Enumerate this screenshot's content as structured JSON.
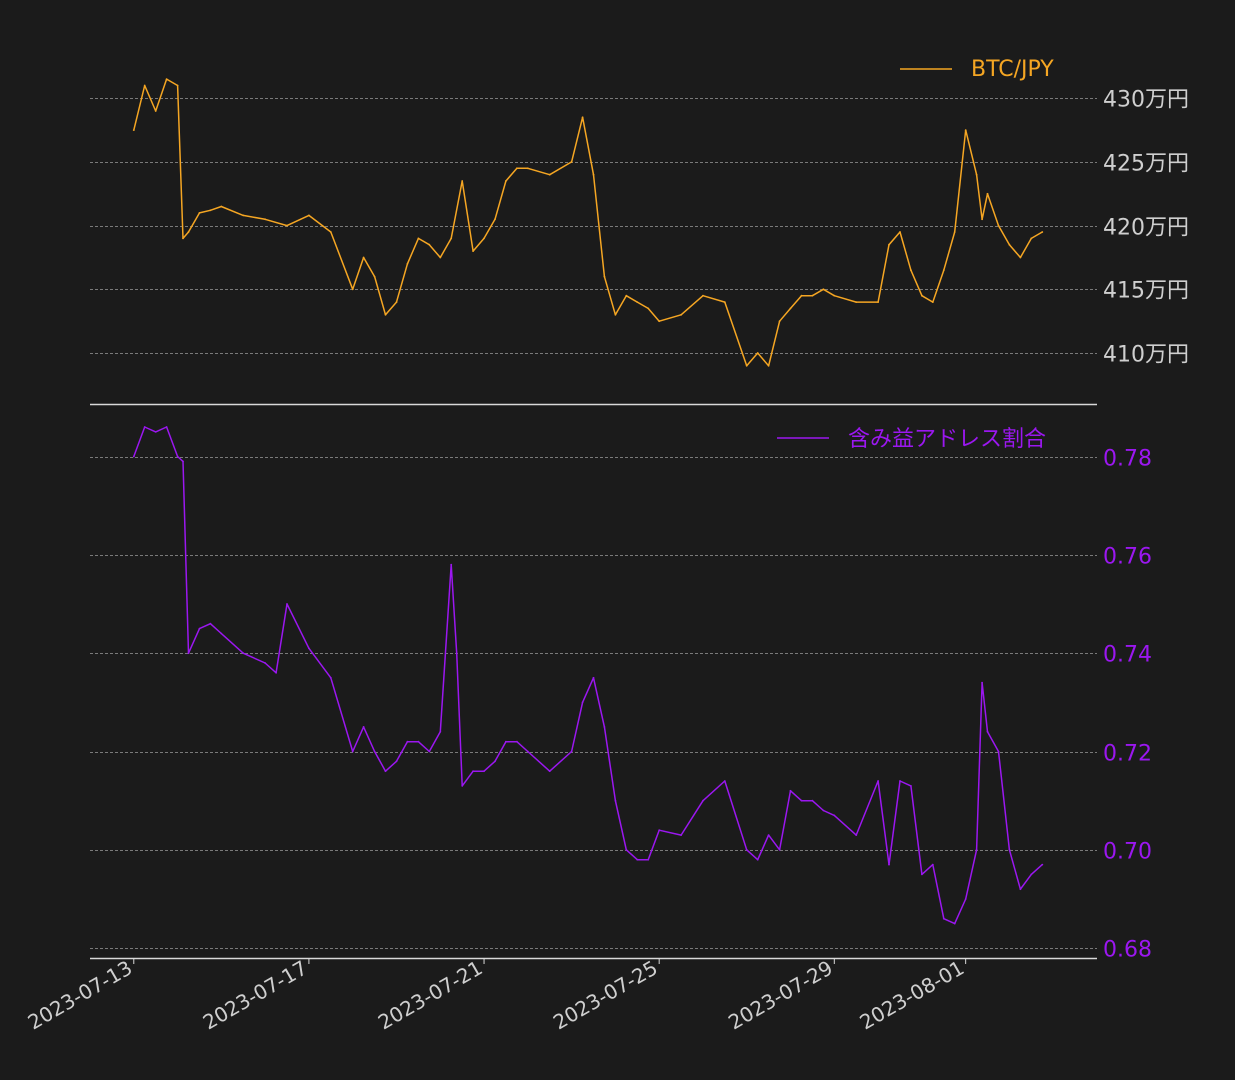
{
  "colors": {
    "background": "#1b1b1b",
    "btc": "#f5a623",
    "ratio": "#9b17f0",
    "grid": "#9a9a9a",
    "axis_text": "#cfcfcf"
  },
  "chart_data": [
    {
      "type": "line",
      "title": "",
      "legend": {
        "label": "BTC/JPY",
        "position": "top-right"
      },
      "y_axis": {
        "side": "right",
        "ticks": [
          4100000,
          4150000,
          4200000,
          4250000,
          4300000
        ],
        "tick_labels": [
          "410万円",
          "415万円",
          "420万円",
          "425万円",
          "430万円"
        ],
        "ylim": [
          4060000,
          4330000
        ]
      },
      "grid": true,
      "series": [
        {
          "name": "BTC/JPY",
          "x": [
            "2023-07-13 00:00",
            "2023-07-13 06:00",
            "2023-07-13 12:00",
            "2023-07-13 18:00",
            "2023-07-14 00:00",
            "2023-07-14 03:00",
            "2023-07-14 06:00",
            "2023-07-14 12:00",
            "2023-07-14 18:00",
            "2023-07-15 00:00",
            "2023-07-15 12:00",
            "2023-07-16 00:00",
            "2023-07-16 12:00",
            "2023-07-17 00:00",
            "2023-07-17 12:00",
            "2023-07-18 00:00",
            "2023-07-18 06:00",
            "2023-07-18 12:00",
            "2023-07-18 18:00",
            "2023-07-19 00:00",
            "2023-07-19 06:00",
            "2023-07-19 12:00",
            "2023-07-19 18:00",
            "2023-07-20 00:00",
            "2023-07-20 06:00",
            "2023-07-20 12:00",
            "2023-07-20 18:00",
            "2023-07-21 00:00",
            "2023-07-21 06:00",
            "2023-07-21 12:00",
            "2023-07-21 18:00",
            "2023-07-22 00:00",
            "2023-07-22 12:00",
            "2023-07-23 00:00",
            "2023-07-23 06:00",
            "2023-07-23 12:00",
            "2023-07-23 18:00",
            "2023-07-24 00:00",
            "2023-07-24 06:00",
            "2023-07-24 12:00",
            "2023-07-24 18:00",
            "2023-07-25 00:00",
            "2023-07-25 12:00",
            "2023-07-26 00:00",
            "2023-07-26 12:00",
            "2023-07-27 00:00",
            "2023-07-27 06:00",
            "2023-07-27 12:00",
            "2023-07-27 18:00",
            "2023-07-28 00:00",
            "2023-07-28 06:00",
            "2023-07-28 12:00",
            "2023-07-28 18:00",
            "2023-07-29 00:00",
            "2023-07-29 12:00",
            "2023-07-30 00:00",
            "2023-07-30 06:00",
            "2023-07-30 12:00",
            "2023-07-30 18:00",
            "2023-07-31 00:00",
            "2023-07-31 06:00",
            "2023-07-31 12:00",
            "2023-07-31 18:00",
            "2023-08-01 00:00",
            "2023-08-01 06:00",
            "2023-08-01 09:00",
            "2023-08-01 12:00",
            "2023-08-01 18:00",
            "2023-08-02 00:00",
            "2023-08-02 06:00",
            "2023-08-02 12:00",
            "2023-08-02 18:00"
          ],
          "values": [
            4275000,
            4310000,
            4290000,
            4315000,
            4310000,
            4190000,
            4195000,
            4210000,
            4212000,
            4215000,
            4208000,
            4205000,
            4200000,
            4208000,
            4195000,
            4150000,
            4175000,
            4160000,
            4130000,
            4140000,
            4170000,
            4190000,
            4185000,
            4175000,
            4190000,
            4235000,
            4180000,
            4190000,
            4205000,
            4235000,
            4245000,
            4245000,
            4240000,
            4250000,
            4285000,
            4240000,
            4160000,
            4130000,
            4145000,
            4140000,
            4135000,
            4125000,
            4130000,
            4145000,
            4140000,
            4090000,
            4100000,
            4090000,
            4125000,
            4135000,
            4145000,
            4145000,
            4150000,
            4145000,
            4140000,
            4140000,
            4185000,
            4195000,
            4165000,
            4145000,
            4140000,
            4165000,
            4195000,
            4275000,
            4240000,
            4205000,
            4225000,
            4200000,
            4185000,
            4175000,
            4190000,
            4195000
          ]
        }
      ]
    },
    {
      "type": "line",
      "title": "",
      "legend": {
        "label": "含み益アドレス割合",
        "position": "top-right"
      },
      "y_axis": {
        "side": "right",
        "ticks": [
          0.68,
          0.7,
          0.72,
          0.74,
          0.76,
          0.78
        ],
        "tick_labels": [
          "0.68",
          "0.70",
          "0.72",
          "0.74",
          "0.76",
          "0.78"
        ],
        "ylim": [
          0.678,
          0.786
        ]
      },
      "x_axis": {
        "tick_labels": [
          "2023-07-13",
          "2023-07-17",
          "2023-07-21",
          "2023-07-25",
          "2023-07-29",
          "2023-08-01"
        ],
        "tick_dates": [
          "2023-07-13",
          "2023-07-17",
          "2023-07-21",
          "2023-07-25",
          "2023-07-29",
          "2023-08-01"
        ],
        "xlim": [
          "2023-07-12 00:00",
          "2023-08-04 00:00"
        ]
      },
      "grid": true,
      "series": [
        {
          "name": "含み益アドレス割合",
          "x": [
            "2023-07-13 00:00",
            "2023-07-13 06:00",
            "2023-07-13 12:00",
            "2023-07-13 18:00",
            "2023-07-14 00:00",
            "2023-07-14 03:00",
            "2023-07-14 06:00",
            "2023-07-14 12:00",
            "2023-07-14 18:00",
            "2023-07-15 00:00",
            "2023-07-15 12:00",
            "2023-07-16 00:00",
            "2023-07-16 06:00",
            "2023-07-16 12:00",
            "2023-07-17 00:00",
            "2023-07-17 12:00",
            "2023-07-18 00:00",
            "2023-07-18 06:00",
            "2023-07-18 12:00",
            "2023-07-18 18:00",
            "2023-07-19 00:00",
            "2023-07-19 06:00",
            "2023-07-19 12:00",
            "2023-07-19 18:00",
            "2023-07-20 00:00",
            "2023-07-20 06:00",
            "2023-07-20 09:00",
            "2023-07-20 12:00",
            "2023-07-20 18:00",
            "2023-07-21 00:00",
            "2023-07-21 06:00",
            "2023-07-21 12:00",
            "2023-07-21 18:00",
            "2023-07-22 00:00",
            "2023-07-22 12:00",
            "2023-07-23 00:00",
            "2023-07-23 06:00",
            "2023-07-23 12:00",
            "2023-07-23 18:00",
            "2023-07-24 00:00",
            "2023-07-24 06:00",
            "2023-07-24 12:00",
            "2023-07-24 18:00",
            "2023-07-25 00:00",
            "2023-07-25 12:00",
            "2023-07-26 00:00",
            "2023-07-26 12:00",
            "2023-07-27 00:00",
            "2023-07-27 06:00",
            "2023-07-27 12:00",
            "2023-07-27 18:00",
            "2023-07-28 00:00",
            "2023-07-28 06:00",
            "2023-07-28 12:00",
            "2023-07-28 18:00",
            "2023-07-29 00:00",
            "2023-07-29 12:00",
            "2023-07-30 00:00",
            "2023-07-30 06:00",
            "2023-07-30 12:00",
            "2023-07-30 18:00",
            "2023-07-31 00:00",
            "2023-07-31 06:00",
            "2023-07-31 12:00",
            "2023-07-31 18:00",
            "2023-08-01 00:00",
            "2023-08-01 06:00",
            "2023-08-01 09:00",
            "2023-08-01 12:00",
            "2023-08-01 18:00",
            "2023-08-02 00:00",
            "2023-08-02 06:00",
            "2023-08-02 12:00",
            "2023-08-02 18:00"
          ],
          "values": [
            0.78,
            0.786,
            0.785,
            0.786,
            0.78,
            0.779,
            0.74,
            0.745,
            0.746,
            0.744,
            0.74,
            0.738,
            0.736,
            0.75,
            0.741,
            0.735,
            0.72,
            0.725,
            0.72,
            0.716,
            0.718,
            0.722,
            0.722,
            0.72,
            0.724,
            0.758,
            0.74,
            0.713,
            0.716,
            0.716,
            0.718,
            0.722,
            0.722,
            0.72,
            0.716,
            0.72,
            0.73,
            0.735,
            0.725,
            0.71,
            0.7,
            0.698,
            0.698,
            0.704,
            0.703,
            0.71,
            0.714,
            0.7,
            0.698,
            0.703,
            0.7,
            0.712,
            0.71,
            0.71,
            0.708,
            0.707,
            0.703,
            0.714,
            0.697,
            0.714,
            0.713,
            0.695,
            0.697,
            0.686,
            0.685,
            0.69,
            0.7,
            0.734,
            0.724,
            0.72,
            0.7,
            0.692,
            0.695,
            0.697
          ]
        }
      ]
    }
  ]
}
